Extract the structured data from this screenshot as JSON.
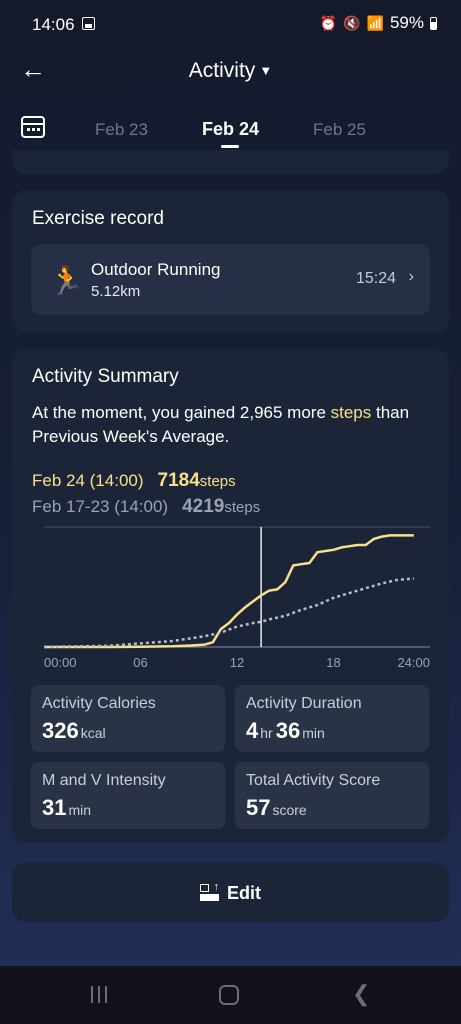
{
  "status": {
    "time": "14:06",
    "battery": "59%"
  },
  "header": {
    "title": "Activity"
  },
  "dates": {
    "prev": "Feb 23",
    "current": "Feb 24",
    "next": "Feb 25"
  },
  "exercise": {
    "title": "Exercise record",
    "name": "Outdoor Running",
    "distance": "5.12km",
    "time": "15:24"
  },
  "summary": {
    "title": "Activity Summary",
    "msg_pre": "At the moment, you gained 2,965 more ",
    "msg_hl": "steps",
    "msg_post": "than Previous Week's Average.",
    "current_label": "Feb 24 (14:00)",
    "current_value": "7184",
    "prev_label": "Feb 17-23 (14:00)",
    "prev_value": "4219",
    "unit": "steps"
  },
  "chart_data": {
    "type": "line",
    "x_ticks": [
      "00:00",
      "06",
      "12",
      "18",
      "24:00"
    ],
    "xlim": [
      0,
      24
    ],
    "ylim": [
      0,
      10000
    ],
    "marker_time": 13.5,
    "series": [
      {
        "color": "#f7e08c",
        "style": "solid",
        "x": [
          0,
          4,
          6,
          8,
          9,
          10,
          10.5,
          11,
          11.5,
          12,
          12.5,
          13,
          13.5,
          14,
          14.5,
          15,
          15.5,
          16,
          16.5,
          17,
          17.5,
          18,
          18.5,
          19,
          19.5,
          20,
          20.5,
          21,
          21.5,
          22,
          23
        ],
        "y": [
          0,
          0,
          20,
          60,
          120,
          200,
          400,
          1500,
          2000,
          2700,
          3300,
          3800,
          4300,
          4700,
          4800,
          5400,
          6800,
          6900,
          7000,
          7900,
          8000,
          8100,
          8300,
          8400,
          8500,
          8500,
          9000,
          9200,
          9300,
          9300,
          9300
        ]
      },
      {
        "color": "#b8bcc6",
        "style": "dashed",
        "x": [
          0,
          4,
          6,
          8,
          9,
          10,
          11,
          12,
          13,
          13.5,
          14,
          15,
          16,
          17,
          18,
          18.5,
          19,
          20,
          21,
          22,
          23
        ],
        "y": [
          0,
          100,
          300,
          500,
          700,
          900,
          1200,
          1700,
          2000,
          2100,
          2300,
          2600,
          3100,
          3500,
          4100,
          4300,
          4500,
          4900,
          5300,
          5600,
          5700
        ]
      }
    ]
  },
  "stats": [
    {
      "label": "Activity Calories",
      "v1": "326",
      "u1": "kcal",
      "v2": "",
      "u2": ""
    },
    {
      "label": "Activity Duration",
      "v1": "4",
      "u1": "hr",
      "v2": "36",
      "u2": "min"
    },
    {
      "label": "M and V Intensity",
      "v1": "31",
      "u1": "min",
      "v2": "",
      "u2": ""
    },
    {
      "label": "Total Activity Score",
      "v1": "57",
      "u1": "score",
      "v2": "",
      "u2": ""
    }
  ],
  "edit_label": "Edit",
  "icons": [
    "back-arrow-icon",
    "calendar-icon",
    "runner-icon",
    "chevron-right-icon",
    "edit-icon"
  ]
}
